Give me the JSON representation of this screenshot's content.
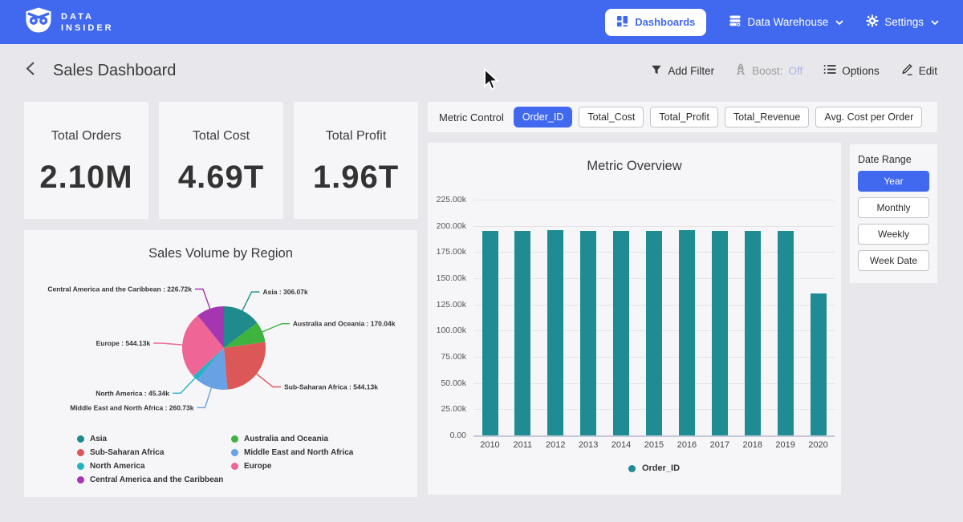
{
  "navbar": {
    "brand_line1": "DATA",
    "brand_line2": "INSIDER",
    "dashboards_label": "Dashboards",
    "data_warehouse_label": "Data Warehouse",
    "settings_label": "Settings"
  },
  "subheader": {
    "title": "Sales Dashboard",
    "add_filter_label": "Add Filter",
    "boost_label": "Boost:",
    "boost_value": "Off",
    "options_label": "Options",
    "edit_label": "Edit"
  },
  "kpis": [
    {
      "label": "Total Orders",
      "value": "2.10M"
    },
    {
      "label": "Total Cost",
      "value": "4.69T"
    },
    {
      "label": "Total Profit",
      "value": "1.96T"
    }
  ],
  "metric_control": {
    "label": "Metric Control",
    "buttons": [
      {
        "label": "Order_ID",
        "selected": true
      },
      {
        "label": "Total_Cost",
        "selected": false
      },
      {
        "label": "Total_Profit",
        "selected": false
      },
      {
        "label": "Total_Revenue",
        "selected": false
      },
      {
        "label": "Avg. Cost per Order",
        "selected": false
      }
    ]
  },
  "date_range": {
    "label": "Date Range",
    "buttons": [
      {
        "label": "Year",
        "selected": true
      },
      {
        "label": "Monthly",
        "selected": false
      },
      {
        "label": "Weekly",
        "selected": false
      },
      {
        "label": "Week Date",
        "selected": false
      }
    ]
  },
  "colors": {
    "accent_blue": "#4169f0",
    "bar_teal": "#1e8c92",
    "page_bg": "#e8e7eb",
    "panel_bg": "#f6f5f8"
  },
  "chart_data": [
    {
      "type": "pie",
      "title": "Sales Volume by Region",
      "unit": "k",
      "slices": [
        {
          "label": "Asia",
          "value": 306.07,
          "label_text": "Asia : 306.07k",
          "color": "#1f8b8c"
        },
        {
          "label": "Australia and Oceania",
          "value": 170.04,
          "label_text": "Australia and Oceania : 170.04k",
          "color": "#3eb33e"
        },
        {
          "label": "Sub-Saharan Africa",
          "value": 544.13,
          "label_text": "Sub-Saharan Africa : 544.13k",
          "color": "#dc5858"
        },
        {
          "label": "Middle East and North Africa",
          "value": 260.73,
          "label_text": "Middle East and North Africa : 260.73k",
          "color": "#68a1e4"
        },
        {
          "label": "North America",
          "value": 45.34,
          "label_text": "North America : 45.34k",
          "color": "#27b2c4"
        },
        {
          "label": "Europe",
          "value": 544.13,
          "label_text": "Europe : 544.13k",
          "color": "#ef6596"
        },
        {
          "label": "Central America and the Caribbean",
          "value": 226.72,
          "label_text": "Central America and the Caribbean : 226.72k",
          "color": "#a635b2"
        }
      ],
      "legend_columns": [
        [
          "Asia",
          "Sub-Saharan Africa",
          "North America",
          "Central America and the Caribbean"
        ],
        [
          "Australia and Oceania",
          "Middle East and North Africa",
          "Europe"
        ]
      ]
    },
    {
      "type": "bar",
      "title": "Metric Overview",
      "categories": [
        "2010",
        "2011",
        "2012",
        "2013",
        "2014",
        "2015",
        "2016",
        "2017",
        "2018",
        "2019",
        "2020"
      ],
      "series": [
        {
          "name": "Order_ID",
          "color": "#1e8c92",
          "values": [
            195400,
            195400,
            196300,
            195300,
            195200,
            195300,
            196300,
            195300,
            195200,
            195400,
            135400
          ]
        }
      ],
      "ylim": [
        0,
        225000
      ],
      "yticks": [
        {
          "value": 225000,
          "label": "225.00k"
        },
        {
          "value": 200000,
          "label": "200.00k"
        },
        {
          "value": 175000,
          "label": "175.00k"
        },
        {
          "value": 150000,
          "label": "150.00k"
        },
        {
          "value": 125000,
          "label": "125.00k"
        },
        {
          "value": 100000,
          "label": "100.00k"
        },
        {
          "value": 75000,
          "label": "75.00k"
        },
        {
          "value": 50000,
          "label": "50.00k"
        },
        {
          "value": 25000,
          "label": "25.00k"
        },
        {
          "value": 0,
          "label": "0.00"
        }
      ],
      "legend": [
        "Order_ID"
      ],
      "grid": true,
      "legend_position": "bottom"
    }
  ]
}
